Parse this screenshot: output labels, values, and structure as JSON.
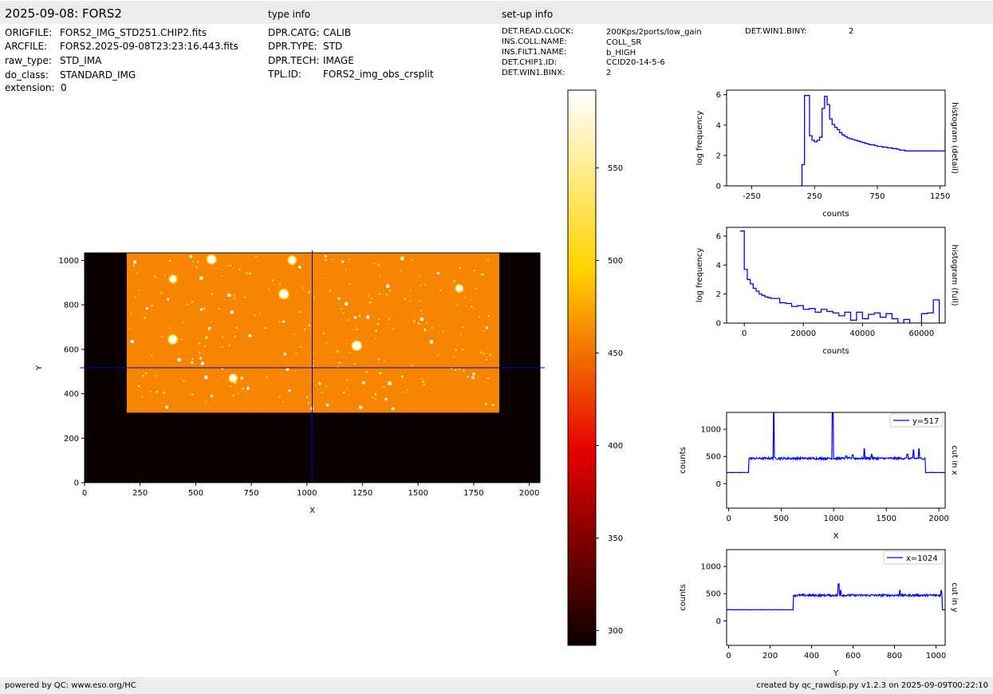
{
  "header": {
    "title": "2025-09-08: FORS2",
    "type_info_title": "type info",
    "setup_info_title": "set-up info"
  },
  "file_info": [
    {
      "key": "ORIGFILE:",
      "value": "FORS2_IMG_STD251.CHIP2.fits"
    },
    {
      "key": "ARCFILE:",
      "value": "FORS2.2025-09-08T23:23:16.443.fits"
    },
    {
      "key": "raw_type:",
      "value": "STD_IMA"
    },
    {
      "key": "do_class:",
      "value": "STANDARD_IMG"
    },
    {
      "key": "extension:",
      "value": "0"
    }
  ],
  "type_info": [
    {
      "key": "DPR.CATG:",
      "value": "CALIB"
    },
    {
      "key": "DPR.TYPE:",
      "value": "STD"
    },
    {
      "key": "DPR.TECH:",
      "value": "IMAGE"
    },
    {
      "key": "TPL.ID:",
      "value": "FORS2_img_obs_crsplit"
    }
  ],
  "setup_info": [
    {
      "key": "DET.READ.CLOCK:",
      "value": "200Kps/2ports/low_gain"
    },
    {
      "key": "INS.COLL.NAME:",
      "value": "COLL_SR"
    },
    {
      "key": "INS.FILT1.NAME:",
      "value": "b_HIGH"
    },
    {
      "key": "DET.CHIP1.ID:",
      "value": "CCID20-14-5-6"
    },
    {
      "key": "DET.WIN1.BINX:",
      "value": "2"
    }
  ],
  "setup_info_extra": [
    {
      "key": "DET.WIN1.BINY:",
      "value": "2"
    }
  ],
  "footer": {
    "left": "powered by QC: www.eso.org/HC",
    "right": "created by qc_rawdisp.py v1.2.3 on 2025-09-09T00:22:10"
  },
  "chart_data": [
    {
      "id": "image",
      "type": "heatmap",
      "xlabel": "X",
      "ylabel": "Y",
      "xlim": [
        0,
        2048
      ],
      "ylim": [
        0,
        1034
      ],
      "xticks": [
        0,
        250,
        500,
        750,
        1000,
        1250,
        1500,
        1750,
        2000
      ],
      "yticks": [
        0,
        200,
        400,
        600,
        800,
        1000
      ],
      "illuminated_region": {
        "x": [
          190,
          1865
        ],
        "y": [
          315,
          1034
        ]
      },
      "crosshair": {
        "x": 1024,
        "y": 517
      },
      "colormap": "hot",
      "colors": {
        "background": "#0a0000",
        "field": "#ff8a00",
        "crosshair": "#0000cc"
      }
    },
    {
      "id": "colorbar",
      "type": "colorbar",
      "range": [
        292,
        592
      ],
      "ticks": [
        300,
        350,
        400,
        450,
        500,
        550
      ]
    },
    {
      "id": "hist_detail",
      "type": "line",
      "step": true,
      "xlabel": "counts",
      "ylabel": "log frequency",
      "side_label": "histogram (detail)",
      "xlim": [
        -450,
        1290
      ],
      "ylim": [
        0,
        6.3
      ],
      "xticks": [
        -250,
        250,
        750,
        1250
      ],
      "yticks": [
        0,
        2,
        4,
        6
      ],
      "x": [
        130,
        150,
        170,
        190,
        210,
        230,
        250,
        270,
        290,
        310,
        330,
        350,
        370,
        390,
        410,
        430,
        450,
        470,
        490,
        510,
        530,
        550,
        570,
        590,
        610,
        630,
        650,
        670,
        690,
        710,
        730,
        750,
        770,
        790,
        810,
        830,
        850,
        870,
        890,
        910,
        930,
        950,
        970,
        990,
        1010,
        1030,
        1050,
        1070,
        1090,
        1110,
        1130,
        1150,
        1170,
        1190,
        1210,
        1230,
        1250,
        1270,
        1290
      ],
      "y": [
        0,
        1.4,
        5.95,
        5.95,
        3.3,
        3.0,
        2.9,
        3.0,
        3.2,
        5.1,
        5.9,
        5.35,
        4.4,
        4.05,
        3.85,
        3.7,
        3.5,
        3.35,
        3.25,
        3.15,
        3.1,
        3.05,
        3.0,
        2.95,
        2.9,
        2.85,
        2.8,
        2.75,
        2.7,
        2.7,
        2.65,
        2.6,
        2.6,
        2.55,
        2.55,
        2.5,
        2.5,
        2.45,
        2.45,
        2.4,
        2.35,
        2.35,
        2.3,
        2.3,
        2.3,
        2.3,
        2.3,
        2.3,
        2.3,
        2.3,
        2.3,
        2.3,
        2.3,
        2.3,
        2.3,
        2.3,
        2.3,
        2.3,
        3.7
      ],
      "color": "#0000ff"
    },
    {
      "id": "hist_full",
      "type": "line",
      "step": true,
      "xlabel": "counts",
      "ylabel": "log frequency",
      "side_label": "histogram (full)",
      "xlim": [
        -6000,
        68000
      ],
      "ylim": [
        0,
        6.6
      ],
      "xticks": [
        0,
        20000,
        40000,
        60000
      ],
      "yticks": [
        0,
        2,
        4,
        6
      ],
      "x": [
        -1500,
        0,
        1000,
        2000,
        3000,
        4000,
        5000,
        6000,
        7000,
        8000,
        9000,
        10000,
        12000,
        14000,
        16000,
        18000,
        20000,
        22000,
        24000,
        26000,
        28000,
        30000,
        32000,
        34000,
        36000,
        38000,
        40000,
        42000,
        44000,
        46000,
        48000,
        50000,
        52000,
        54000,
        56000,
        58000,
        60000,
        62000,
        64000,
        66000,
        67500
      ],
      "y": [
        6.35,
        3.7,
        3.0,
        2.7,
        2.4,
        2.2,
        2.0,
        1.9,
        1.8,
        1.75,
        1.7,
        1.7,
        1.4,
        1.35,
        1.15,
        1.2,
        0.95,
        1.0,
        0.75,
        0.95,
        0.8,
        0.7,
        0.5,
        0.75,
        0.2,
        0.75,
        0.3,
        0.6,
        0.7,
        0.4,
        0.65,
        0.3,
        0.0,
        0.25,
        0.0,
        0.0,
        0.65,
        0.7,
        1.6,
        0.0,
        0.0
      ],
      "color": "#0000ff"
    },
    {
      "id": "cut_x",
      "type": "line",
      "xlabel": "X",
      "ylabel": "counts",
      "side_label": "cut in x",
      "legend": "y=517",
      "xlim": [
        -20,
        2060
      ],
      "ylim": [
        -450,
        1310
      ],
      "xticks": [
        0,
        500,
        1000,
        1500,
        2000
      ],
      "yticks": [
        0,
        500,
        1000
      ],
      "baseline_out": 205,
      "baseline_in": 465,
      "region": [
        190,
        1870
      ],
      "spikes": [
        [
          430,
          1310
        ],
        [
          990,
          1310
        ],
        [
          1120,
          510
        ],
        [
          1180,
          530
        ],
        [
          1290,
          640
        ],
        [
          1360,
          540
        ],
        [
          1700,
          540
        ],
        [
          1760,
          620
        ],
        [
          1810,
          640
        ]
      ],
      "color": "#0000ff"
    },
    {
      "id": "cut_y",
      "type": "line",
      "xlabel": "Y",
      "ylabel": "counts",
      "side_label": "cut in y",
      "legend": "x=1024",
      "xlim": [
        -10,
        1044
      ],
      "ylim": [
        -450,
        1310
      ],
      "xticks": [
        0,
        200,
        400,
        600,
        800,
        1000
      ],
      "yticks": [
        0,
        500,
        1000
      ],
      "baseline_out": 205,
      "baseline_in": 470,
      "region": [
        312,
        1030
      ],
      "spikes": [
        [
          530,
          680
        ],
        [
          540,
          560
        ],
        [
          825,
          560
        ],
        [
          1025,
          560
        ]
      ],
      "color": "#0000ff"
    }
  ]
}
